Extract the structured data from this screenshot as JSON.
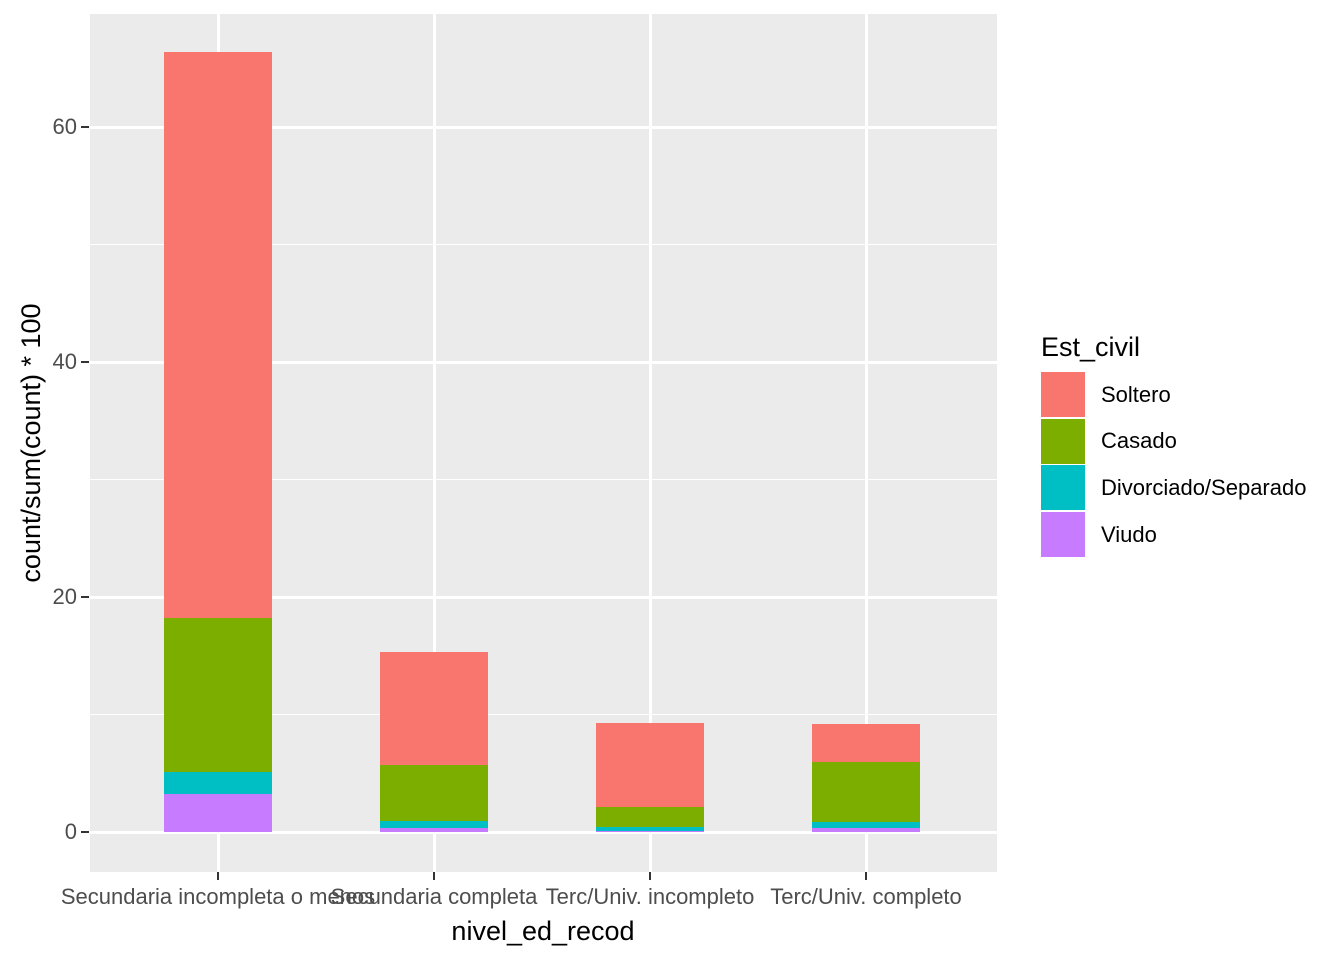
{
  "figure": {
    "background": "#FFFFFF",
    "panel_background": "#EBEBEB",
    "grid_color": "#FFFFFF",
    "tick_mark_color": "#333333",
    "tick_label_color": "#4D4D4D",
    "axis_title_color": "#000000"
  },
  "chart_data": {
    "type": "bar",
    "stacked": true,
    "title": "",
    "xlabel": "nivel_ed_recod",
    "ylabel": "count/sum(count) * 100",
    "categories": [
      "Secundaria incompleta o menos",
      "Secundaria completa",
      "Terc/Univ. incompleto",
      "Terc/Univ. completo"
    ],
    "series": [
      {
        "name": "Soltero",
        "color": "#F8766D",
        "values": [
          48.2,
          9.6,
          7.1,
          3.25
        ]
      },
      {
        "name": "Casado",
        "color": "#7CAE00",
        "values": [
          13.1,
          4.8,
          1.75,
          5.1
        ]
      },
      {
        "name": "Divorciado/Separado",
        "color": "#00BFC4",
        "values": [
          1.9,
          0.55,
          0.3,
          0.5
        ]
      },
      {
        "name": "Viudo",
        "color": "#C77CFF",
        "values": [
          3.2,
          0.35,
          0.1,
          0.35
        ]
      }
    ],
    "stack_order_bottom_to_top": [
      "Viudo",
      "Divorciado/Separado",
      "Casado",
      "Soltero"
    ],
    "bar_totals": [
      66.4,
      15.3,
      9.25,
      9.2
    ],
    "y_ticks": [
      0,
      20,
      40,
      60
    ],
    "y_minor_ticks": [
      10,
      30,
      50
    ],
    "ylim": [
      -3.4,
      69.6
    ],
    "grid": true,
    "legend": {
      "title": "Est_civil",
      "position": "right"
    }
  }
}
